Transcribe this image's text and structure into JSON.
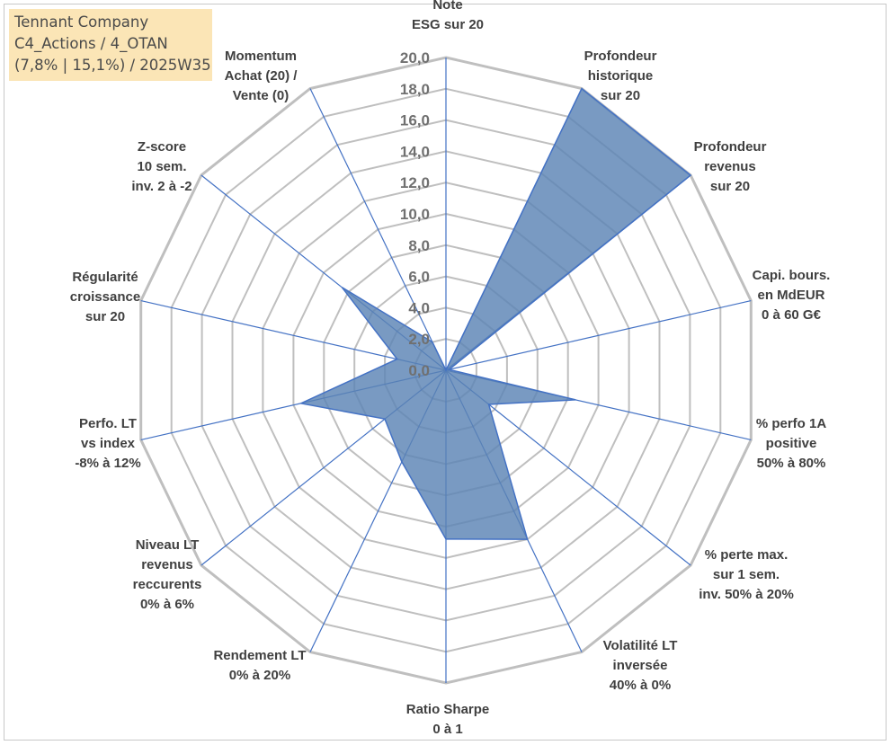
{
  "title_box": {
    "line1": "Tennant Company",
    "line2": "C4_Actions / 4_OTAN",
    "line3": "(7,8% | 15,1%) / 2025W35"
  },
  "colors": {
    "fill": "#5b84b5",
    "stroke": "#4472c4",
    "grid_major": "#bfbfbf",
    "spoke": "#4472c4",
    "title_bg": "#fbe5b6"
  },
  "chart_data": {
    "type": "radar",
    "title": "",
    "r_range": [
      0,
      20
    ],
    "r_step": 2,
    "tick_labels": [
      "0,0",
      "2,0",
      "4,0",
      "6,0",
      "8,0",
      "10,0",
      "12,0",
      "14,0",
      "16,0",
      "18,0",
      "20,0"
    ],
    "axes": [
      {
        "label": [
          "Note",
          "ESG sur 20"
        ],
        "value": 0
      },
      {
        "label": [
          "Profondeur",
          "historique",
          "sur 20"
        ],
        "value": 20
      },
      {
        "label": [
          "Profondeur",
          "revenus",
          "sur 20"
        ],
        "value": 20
      },
      {
        "label": [
          "Capi. bours.",
          "en MdEUR",
          "0 à 60 G€"
        ],
        "value": 0.2
      },
      {
        "label": [
          "% perfo 1A",
          "positive",
          "50% à 80%"
        ],
        "value": 8.5
      },
      {
        "label": [
          "% perte max.",
          "sur 1 sem.",
          "inv. 50% à 20%"
        ],
        "value": 3.5
      },
      {
        "label": [
          "Volatilité LT",
          "inversée",
          "40% à 0%"
        ],
        "value": 12
      },
      {
        "label": [
          "Ratio Sharpe",
          "0 à 1"
        ],
        "value": 10.8
      },
      {
        "label": [
          "Rendement LT",
          "0% à 20%"
        ],
        "value": 6.5
      },
      {
        "label": [
          "Niveau LT",
          "revenus",
          "reccurents",
          "0% à 6%"
        ],
        "value": 5
      },
      {
        "label": [
          "Perfo. LT",
          "vs index",
          "-8% à 12%"
        ],
        "value": 9.5
      },
      {
        "label": [
          "Régularité",
          "croissance",
          "sur 20"
        ],
        "value": 3.2
      },
      {
        "label": [
          "Z-score",
          "10 sem.",
          "inv. 2 à -2"
        ],
        "value": 8.5
      },
      {
        "label": [
          "Momentum",
          "Achat (20) /",
          "Vente (0)"
        ],
        "value": 2
      }
    ]
  }
}
